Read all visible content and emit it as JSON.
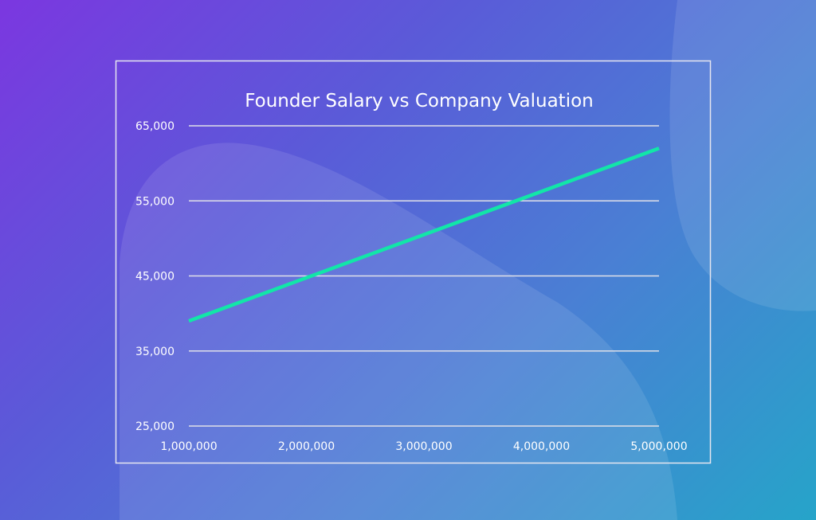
{
  "chart_data": {
    "type": "line",
    "title": "Founder Salary vs Company Valuation",
    "xlabel": "",
    "ylabel": "",
    "x_ticks": [
      "1,000,000",
      "2,000,000",
      "3,000,000",
      "4,000,000",
      "5,000,000"
    ],
    "y_ticks": [
      "65,000",
      "55,000",
      "45,000",
      "35,000",
      "25,000"
    ],
    "xlim": [
      1000000,
      5000000
    ],
    "ylim": [
      25000,
      65000
    ],
    "grid": "horizontal",
    "series": [
      {
        "x": [
          1000000,
          5000000
        ],
        "y": [
          39000,
          62000
        ],
        "color": "#12e6a8"
      }
    ]
  },
  "colors": {
    "background_start": "#7b37e0",
    "background_end": "#26a4c9",
    "line": "#12e6a8",
    "grid": "#e0e0e8"
  }
}
